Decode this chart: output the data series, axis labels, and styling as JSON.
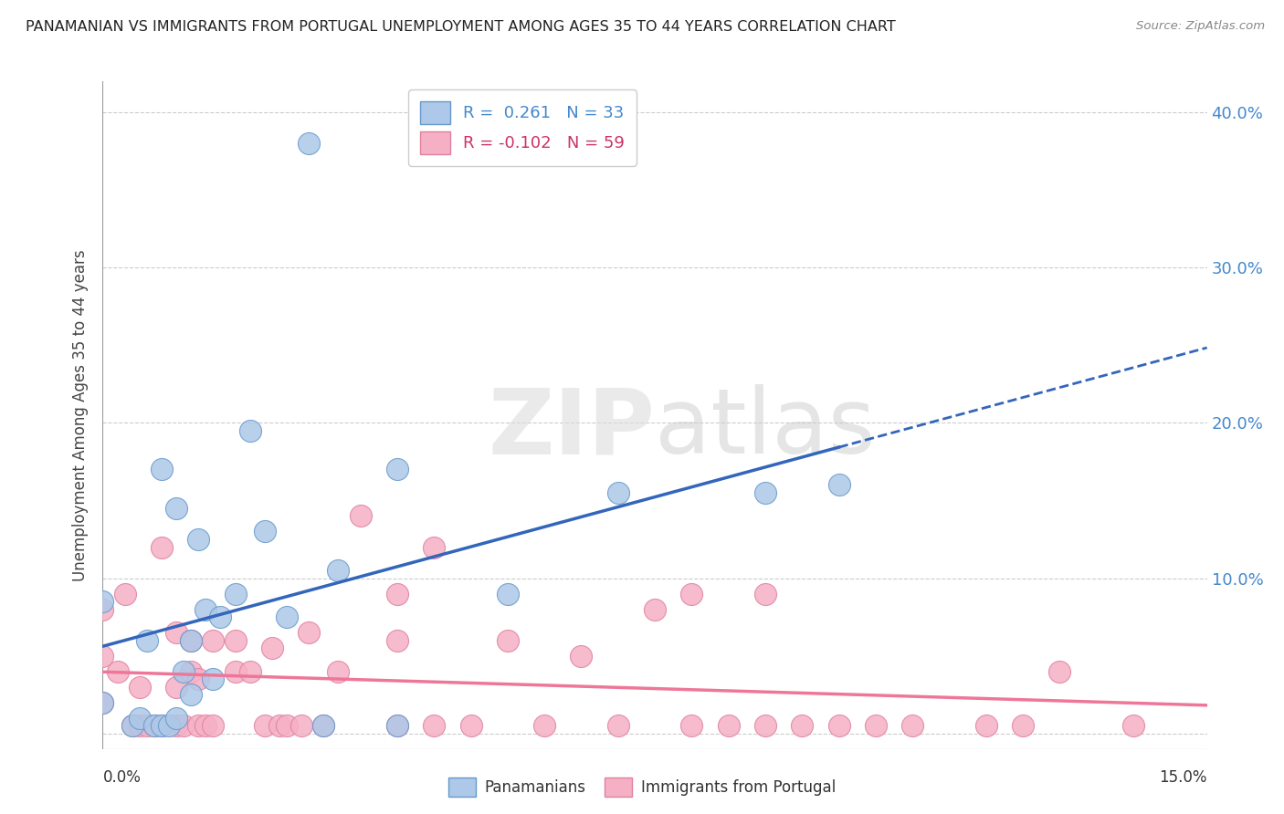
{
  "title": "PANAMANIAN VS IMMIGRANTS FROM PORTUGAL UNEMPLOYMENT AMONG AGES 35 TO 44 YEARS CORRELATION CHART",
  "source": "Source: ZipAtlas.com",
  "ylabel": "Unemployment Among Ages 35 to 44 years",
  "xlim": [
    0.0,
    0.15
  ],
  "ylim": [
    -0.01,
    0.42
  ],
  "yticks": [
    0.0,
    0.1,
    0.2,
    0.3,
    0.4
  ],
  "ytick_labels": [
    "",
    "10.0%",
    "20.0%",
    "30.0%",
    "40.0%"
  ],
  "blue_color": "#adc8e8",
  "pink_color": "#f5b0c5",
  "blue_edge_color": "#6699cc",
  "pink_edge_color": "#e080a0",
  "blue_line_color": "#3366bb",
  "pink_line_color": "#ee7799",
  "blue_scatter_x": [
    0.0,
    0.0,
    0.004,
    0.005,
    0.006,
    0.007,
    0.008,
    0.008,
    0.009,
    0.01,
    0.01,
    0.011,
    0.012,
    0.012,
    0.013,
    0.014,
    0.015,
    0.016,
    0.018,
    0.02,
    0.022,
    0.025,
    0.028,
    0.03,
    0.032,
    0.04,
    0.04,
    0.055,
    0.07,
    0.09,
    0.1
  ],
  "blue_scatter_y": [
    0.02,
    0.085,
    0.005,
    0.01,
    0.06,
    0.005,
    0.005,
    0.17,
    0.005,
    0.01,
    0.145,
    0.04,
    0.06,
    0.025,
    0.125,
    0.08,
    0.035,
    0.075,
    0.09,
    0.195,
    0.13,
    0.075,
    0.38,
    0.005,
    0.105,
    0.005,
    0.17,
    0.09,
    0.155,
    0.155,
    0.16
  ],
  "pink_scatter_x": [
    0.0,
    0.0,
    0.0,
    0.002,
    0.003,
    0.004,
    0.005,
    0.005,
    0.006,
    0.007,
    0.008,
    0.008,
    0.01,
    0.01,
    0.01,
    0.011,
    0.012,
    0.012,
    0.013,
    0.013,
    0.014,
    0.015,
    0.015,
    0.018,
    0.018,
    0.02,
    0.022,
    0.023,
    0.024,
    0.025,
    0.027,
    0.028,
    0.03,
    0.032,
    0.035,
    0.04,
    0.04,
    0.04,
    0.045,
    0.045,
    0.05,
    0.055,
    0.06,
    0.065,
    0.07,
    0.075,
    0.08,
    0.08,
    0.085,
    0.09,
    0.09,
    0.095,
    0.1,
    0.105,
    0.11,
    0.12,
    0.125,
    0.13,
    0.14
  ],
  "pink_scatter_y": [
    0.02,
    0.05,
    0.08,
    0.04,
    0.09,
    0.005,
    0.005,
    0.03,
    0.005,
    0.005,
    0.005,
    0.12,
    0.005,
    0.03,
    0.065,
    0.005,
    0.04,
    0.06,
    0.005,
    0.035,
    0.005,
    0.005,
    0.06,
    0.04,
    0.06,
    0.04,
    0.005,
    0.055,
    0.005,
    0.005,
    0.005,
    0.065,
    0.005,
    0.04,
    0.14,
    0.005,
    0.06,
    0.09,
    0.005,
    0.12,
    0.005,
    0.06,
    0.005,
    0.05,
    0.005,
    0.08,
    0.005,
    0.09,
    0.005,
    0.09,
    0.005,
    0.005,
    0.005,
    0.005,
    0.005,
    0.005,
    0.005,
    0.04,
    0.005
  ]
}
